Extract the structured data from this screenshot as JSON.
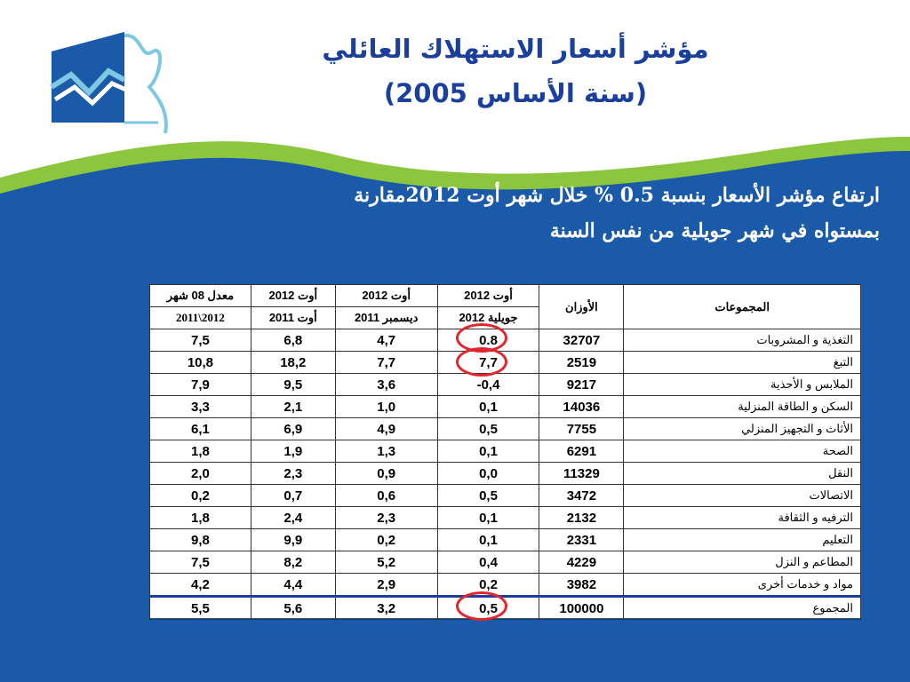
{
  "title": {
    "line1": "مؤشر أسعار الاستهلاك العائلي",
    "line2": "(سنة الأساس 2005)"
  },
  "headline": {
    "line1": "ارتفاع مؤشر الأسعار بنسبة 0.5 % خلال شهر أوت 2012مقارنة",
    "line2": "بمستواه في شهر جويلية من نفس السنة"
  },
  "colors": {
    "background_blue": "#1a5aa8",
    "accent_green": "#8cc63f",
    "title_blue": "#1a3f9c",
    "highlight_red": "#e2262d"
  },
  "table": {
    "headers": {
      "groups": "المجموعات",
      "weights": "الأوزان",
      "c1_top": "2012 أوت",
      "c1_bottom": "2012 جويلية",
      "c2_top": "2012 أوت",
      "c2_bottom": "2011 ديسمبر",
      "c3_top": "2012 أوت",
      "c3_bottom": "2011 أوت",
      "c4_top": "معدل 08 شهر",
      "c4_bottom": "2011\\2012"
    },
    "rows": [
      {
        "name": "التغذية و المشروبات",
        "weight": "32707",
        "c1": "0.8",
        "c2": "4,7",
        "c3": "6,8",
        "c4": "7,5"
      },
      {
        "name": "التبغ",
        "weight": "2519",
        "c1": "7,7",
        "c2": "7,7",
        "c3": "18,2",
        "c4": "10,8"
      },
      {
        "name": "الملابس و الأحذية",
        "weight": "9217",
        "c1": "-0,4",
        "c2": "3,6",
        "c3": "9,5",
        "c4": "7,9"
      },
      {
        "name": "السكن و الطاقة المنزلية",
        "weight": "14036",
        "c1": "0,1",
        "c2": "1,0",
        "c3": "2,1",
        "c4": "3,3"
      },
      {
        "name": "الأثاث و التجهيز المنزلي",
        "weight": "7755",
        "c1": "0,5",
        "c2": "4,9",
        "c3": "6,9",
        "c4": "6,1"
      },
      {
        "name": "الصحة",
        "weight": "6291",
        "c1": "0,1",
        "c2": "1,3",
        "c3": "1,9",
        "c4": "1,8"
      },
      {
        "name": "النقل",
        "weight": "11329",
        "c1": "0,0",
        "c2": "0,9",
        "c3": "2,3",
        "c4": "2,0"
      },
      {
        "name": "الاتصالات",
        "weight": "3472",
        "c1": "0,5",
        "c2": "0,6",
        "c3": "0,7",
        "c4": "0,2"
      },
      {
        "name": "الترفيه و الثقافة",
        "weight": "2132",
        "c1": "0,1",
        "c2": "2,3",
        "c3": "2,4",
        "c4": "1,8"
      },
      {
        "name": "التعليم",
        "weight": "2331",
        "c1": "0,1",
        "c2": "0,2",
        "c3": "9,9",
        "c4": "9,8"
      },
      {
        "name": "المطاعم و النزل",
        "weight": "4229",
        "c1": "0,4",
        "c2": "5,2",
        "c3": "8,2",
        "c4": "7,5"
      },
      {
        "name": "مواد و خدمات أخرى",
        "weight": "3982",
        "c1": "0,2",
        "c2": "2,9",
        "c3": "4,4",
        "c4": "4,2"
      }
    ],
    "total": {
      "name": "المجموع",
      "weight": "100000",
      "c1": "0,5",
      "c2": "3,2",
      "c3": "5,6",
      "c4": "5,5"
    }
  }
}
